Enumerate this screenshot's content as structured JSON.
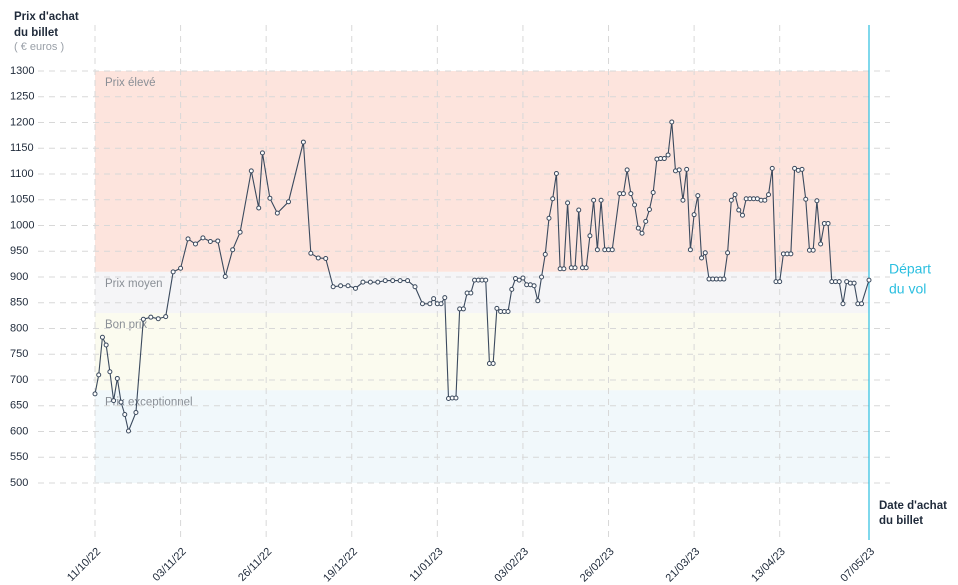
{
  "chart_data": {
    "type": "line",
    "y_title": [
      "Prix d'achat",
      "du billet"
    ],
    "y_unit": "( € euros )",
    "x_title": [
      "Date d'achat",
      "du billet"
    ],
    "annotation": [
      "Départ",
      "du vol"
    ],
    "annotation_color": "#2bbfe0",
    "color": "#3b4a5e",
    "grid": true,
    "ylim": [
      500,
      1300
    ],
    "yticks": [
      500,
      550,
      600,
      650,
      700,
      750,
      800,
      850,
      900,
      950,
      1000,
      1050,
      1100,
      1150,
      1200,
      1250,
      1300
    ],
    "xlim": [
      "11/10/22",
      "07/05/23"
    ],
    "xticks": [
      "11/10/22",
      "03/11/22",
      "26/11/22",
      "19/12/22",
      "11/01/23",
      "03/02/23",
      "26/02/23",
      "21/03/23",
      "13/04/23",
      "07/05/23"
    ],
    "bands": [
      {
        "label": "Prix élevé",
        "from": 910,
        "to": 1300,
        "color": "#fde4dd"
      },
      {
        "label": "Prix moyen",
        "from": 830,
        "to": 910,
        "color": "#f5f5f7"
      },
      {
        "label": "Bon prix",
        "from": 680,
        "to": 830,
        "color": "#fbfbef"
      },
      {
        "label": "Prix exceptionnel",
        "from": 500,
        "to": 680,
        "color": "#f1f8fb"
      }
    ],
    "x": [
      "11/10/22",
      "12/10/22",
      "13/10/22",
      "14/10/22",
      "15/10/22",
      "16/10/22",
      "17/10/22",
      "18/10/22",
      "19/10/22",
      "20/10/22",
      "22/10/22",
      "24/10/22",
      "26/10/22",
      "28/10/22",
      "30/10/22",
      "01/11/22",
      "03/11/22",
      "05/11/22",
      "07/11/22",
      "09/11/22",
      "11/11/22",
      "13/11/22",
      "15/11/22",
      "17/11/22",
      "19/11/22",
      "22/11/22",
      "24/11/22",
      "25/11/22",
      "27/11/22",
      "29/11/22",
      "02/12/22",
      "06/12/22",
      "08/12/22",
      "10/12/22",
      "12/12/22",
      "14/12/22",
      "16/12/22",
      "18/12/22",
      "20/12/22",
      "22/12/22",
      "24/12/22",
      "26/12/22",
      "28/12/22",
      "30/12/22",
      "01/01/23",
      "03/01/23",
      "05/01/23",
      "07/01/23",
      "09/01/23",
      "10/01/23",
      "11/01/23",
      "12/01/23",
      "13/01/23",
      "14/01/23",
      "15/01/23",
      "16/01/23",
      "17/01/23",
      "18/01/23",
      "19/01/23",
      "20/01/23",
      "21/01/23",
      "22/01/23",
      "23/01/23",
      "24/01/23",
      "25/01/23",
      "26/01/23",
      "27/01/23",
      "28/01/23",
      "29/01/23",
      "30/01/23",
      "31/01/23",
      "01/02/23",
      "02/02/23",
      "03/02/23",
      "04/02/23",
      "05/02/23",
      "06/02/23",
      "07/02/23",
      "08/02/23",
      "09/02/23",
      "10/02/23",
      "11/02/23",
      "12/02/23",
      "13/02/23",
      "14/02/23",
      "15/02/23",
      "16/02/23",
      "17/02/23",
      "18/02/23",
      "19/02/23",
      "20/02/23",
      "21/02/23",
      "22/02/23",
      "23/02/23",
      "24/02/23",
      "25/02/23",
      "26/02/23",
      "27/02/23",
      "01/03/23",
      "02/03/23",
      "03/03/23",
      "04/03/23",
      "05/03/23",
      "06/03/23",
      "07/03/23",
      "08/03/23",
      "09/03/23",
      "10/03/23",
      "11/03/23",
      "12/03/23",
      "13/03/23",
      "14/03/23",
      "15/03/23",
      "16/03/23",
      "17/03/23",
      "18/03/23",
      "19/03/23",
      "20/03/23",
      "21/03/23",
      "22/03/23",
      "23/03/23",
      "24/03/23",
      "25/03/23",
      "26/03/23",
      "27/03/23",
      "28/03/23",
      "29/03/23",
      "30/03/23",
      "31/03/23",
      "01/04/23",
      "02/04/23",
      "03/04/23",
      "04/04/23",
      "05/04/23",
      "06/04/23",
      "07/04/23",
      "08/04/23",
      "09/04/23",
      "10/04/23",
      "11/04/23",
      "12/04/23",
      "13/04/23",
      "14/04/23",
      "15/04/23",
      "16/04/23",
      "17/04/23",
      "18/04/23",
      "19/04/23",
      "20/04/23",
      "21/04/23",
      "22/04/23",
      "23/04/23",
      "24/04/23",
      "25/04/23",
      "26/04/23",
      "27/04/23",
      "28/04/23",
      "29/04/23",
      "30/04/23",
      "01/05/23",
      "02/05/23",
      "03/05/23",
      "04/05/23",
      "05/05/23",
      "07/05/23"
    ],
    "values": [
      673,
      710,
      783,
      768,
      716,
      660,
      703,
      657,
      633,
      601,
      637,
      818,
      822,
      819,
      823,
      910,
      917,
      974,
      964,
      976,
      969,
      970,
      901,
      953,
      987,
      1106,
      1034,
      1141,
      1053,
      1024,
      1046,
      1162,
      946,
      937,
      936,
      881,
      883,
      883,
      878,
      890,
      890,
      890,
      893,
      893,
      893,
      893,
      881,
      848,
      848,
      858,
      848,
      848,
      860,
      664,
      665,
      665,
      838,
      838,
      869,
      869,
      894,
      894,
      894,
      894,
      732,
      732,
      839,
      833,
      833,
      833,
      876,
      897,
      894,
      898,
      885,
      885,
      883,
      854,
      900,
      944,
      1014,
      1052,
      1101,
      916,
      916,
      1044,
      918,
      918,
      1030,
      918,
      918,
      980,
      1049,
      953,
      1049,
      953,
      953,
      953,
      1062,
      1062,
      1108,
      1062,
      1040,
      995,
      985,
      1008,
      1031,
      1064,
      1129,
      1130,
      1130,
      1137,
      1201,
      1106,
      1108,
      1049,
      1109,
      953,
      1021,
      1058,
      937,
      947,
      896,
      896,
      896,
      896,
      896,
      947,
      1049,
      1060,
      1030,
      1020,
      1052,
      1052,
      1052,
      1052,
      1049,
      1049,
      1060,
      1111,
      891,
      891,
      945,
      945,
      945,
      1111,
      1107,
      1109,
      1051,
      952,
      952,
      1048,
      964,
      1004,
      1004,
      891,
      891,
      891,
      848,
      891,
      888,
      888,
      848,
      848,
      894
    ]
  }
}
